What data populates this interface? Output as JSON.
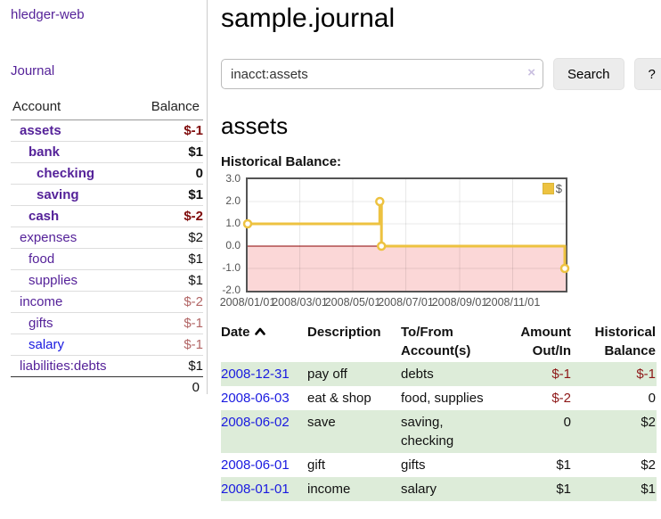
{
  "colors": {
    "link_purple": "#552299",
    "link_blue": "#1a1ae0",
    "negative_strong": "#7f0c0c",
    "negative_soft": "#b26666",
    "table_negative": "#8d1717",
    "row_stripe_green": "#ddecd9",
    "sidebar_divider": "#cccccc"
  },
  "sidebar": {
    "app_title": "hledger-web",
    "journal_link": "Journal",
    "accounts_header": {
      "account": "Account",
      "balance": "Balance"
    },
    "accounts": [
      {
        "name": "assets",
        "depth": 1,
        "in_account": true,
        "balance": "$-1",
        "negative": "strong"
      },
      {
        "name": "bank",
        "depth": 2,
        "in_account": true,
        "balance": "$1"
      },
      {
        "name": "checking",
        "depth": 3,
        "in_account": true,
        "balance": "0"
      },
      {
        "name": "saving",
        "depth": 3,
        "in_account": true,
        "balance": "$1"
      },
      {
        "name": "cash",
        "depth": 2,
        "in_account": true,
        "balance": "$-2",
        "negative": "strong"
      },
      {
        "name": "expenses",
        "depth": 1,
        "in_account": false,
        "balance": "$2"
      },
      {
        "name": "food",
        "depth": 2,
        "in_account": false,
        "balance": "$1"
      },
      {
        "name": "supplies",
        "depth": 2,
        "in_account": false,
        "balance": "$1"
      },
      {
        "name": "income",
        "depth": 1,
        "in_account": false,
        "balance": "$-2",
        "negative": "soft"
      },
      {
        "name": "gifts",
        "depth": 2,
        "in_account": false,
        "balance": "$-1",
        "negative": "soft"
      },
      {
        "name": "salary",
        "depth": 2,
        "in_account": false,
        "balance": "$-1",
        "negative": "soft",
        "link_color": "blue"
      },
      {
        "name": "liabilities:debts",
        "depth": 1,
        "in_account": false,
        "balance": "$1"
      }
    ],
    "total": "0"
  },
  "main": {
    "title": "sample.journal",
    "search": {
      "value": "inacct:assets",
      "clear_icon": "×",
      "button_label": "Search",
      "help_label": "?"
    },
    "account_heading": "assets"
  },
  "chart_data": {
    "type": "line",
    "title": "Historical Balance:",
    "steps": true,
    "series": [
      {
        "name": "$",
        "color": "#edc240",
        "points": [
          {
            "date": "2008-01-01",
            "value": 1
          },
          {
            "date": "2008-06-01",
            "value": 2
          },
          {
            "date": "2008-06-03",
            "value": 0
          },
          {
            "date": "2008-12-31",
            "value": -1
          }
        ]
      }
    ],
    "x_range": [
      "2008-01-01",
      "2009-01-01"
    ],
    "y_range": [
      -2,
      3
    ],
    "y_ticks": [
      3.0,
      2.0,
      1.0,
      0.0,
      -1.0,
      -2.0
    ],
    "x_ticks": [
      "2008/01/01",
      "2008/03/01",
      "2008/05/01",
      "2008/07/01",
      "2008/09/01",
      "2008/11/01"
    ],
    "grid": true,
    "legend_position": "top-right",
    "negative_region_color": "#fbd7d7",
    "zero_line_color": "#8b0000",
    "grid_color": "rgba(0,0,0,0.09)",
    "border_color": "#545454"
  },
  "register": {
    "columns": [
      {
        "label": "Date",
        "sort": "asc"
      },
      {
        "label": "Description"
      },
      {
        "label": "To/From Account(s)"
      },
      {
        "label": "Amount Out/In",
        "align": "right"
      },
      {
        "label": "Historical Balance",
        "align": "right"
      }
    ],
    "rows": [
      {
        "date": "2008-12-31",
        "description": "pay off",
        "accounts": "debts",
        "amount": "$-1",
        "amount_negative": true,
        "balance": "$-1",
        "balance_negative": true
      },
      {
        "date": "2008-06-03",
        "description": "eat & shop",
        "accounts": "food, supplies",
        "amount": "$-2",
        "amount_negative": true,
        "balance": "0",
        "balance_negative": false
      },
      {
        "date": "2008-06-02",
        "description": "save",
        "accounts": "saving, checking",
        "amount": "0",
        "amount_negative": false,
        "balance": "$2",
        "balance_negative": false
      },
      {
        "date": "2008-06-01",
        "description": "gift",
        "accounts": "gifts",
        "amount": "$1",
        "amount_negative": false,
        "balance": "$2",
        "balance_negative": false
      },
      {
        "date": "2008-01-01",
        "description": "income",
        "accounts": "salary",
        "amount": "$1",
        "amount_negative": false,
        "balance": "$1",
        "balance_negative": false
      }
    ]
  }
}
